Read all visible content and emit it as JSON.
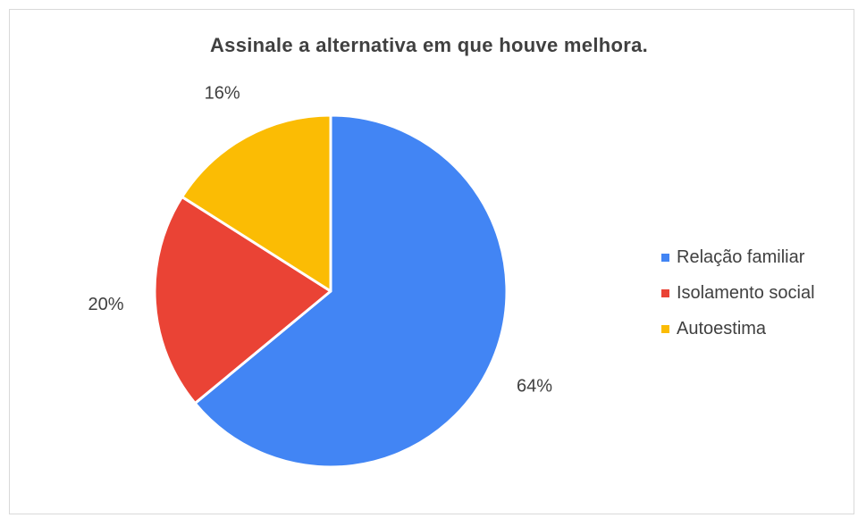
{
  "chart_data": {
    "type": "pie",
    "title": "Assinale  a alternativa  em que houve melhora.",
    "categories": [
      "Relação familiar",
      "Isolamento social",
      "Autoestima"
    ],
    "values": [
      64,
      20,
      16
    ],
    "value_labels": [
      "64%",
      "20%",
      "16%"
    ],
    "colors": [
      "#4285f4",
      "#ea4335",
      "#fbbc04"
    ],
    "legend_position": "right",
    "start_angle": "top, clockwise"
  }
}
